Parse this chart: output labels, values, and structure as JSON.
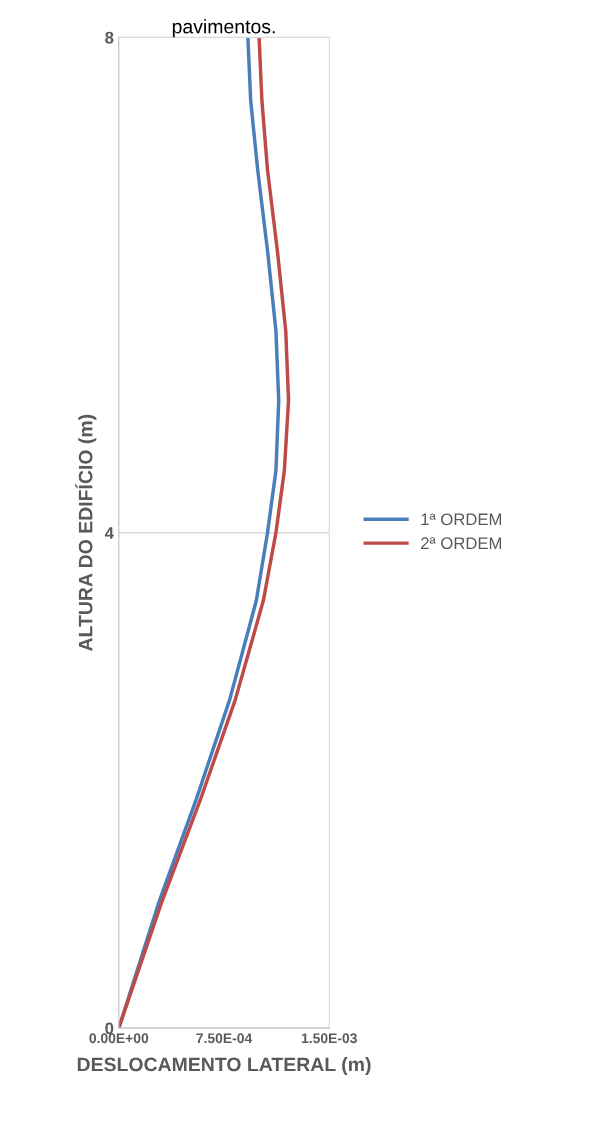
{
  "chart_data": {
    "type": "line",
    "title": "pavimentos.",
    "xlabel": "DESLOCAMENTO LATERAL (m)",
    "ylabel": "ALTURA DO EDIFÍCIO (m)",
    "xlim": [
      0,
      0.0015
    ],
    "xticks": [
      {
        "value": 0,
        "label": "0.00E+00"
      },
      {
        "value": 0.00075,
        "label": "7.50E-04"
      },
      {
        "value": 0.0015,
        "label": "1.50E-03"
      }
    ],
    "ylim": [
      0,
      8
    ],
    "yticks": [
      0,
      4,
      8
    ],
    "grid": "y",
    "legend": "right",
    "line_style": "solid",
    "marker": "none",
    "series": [
      {
        "name": "1ª ORDEM",
        "color": "#4a7ebb",
        "x": [
          0,
          0.00029,
          0.00055,
          0.00079,
          0.00098,
          0.00106,
          0.00112,
          0.00114,
          0.00112,
          0.00106,
          0.00099,
          0.00094,
          0.00092
        ],
        "values": [
          0,
          1.03,
          1.84,
          2.65,
          3.45,
          4,
          4.5,
          5.07,
          5.63,
          6.28,
          6.93,
          7.49,
          8
        ]
      },
      {
        "name": "2ª ORDEM",
        "color": "#be4b48",
        "x": [
          0,
          0.00031,
          0.00058,
          0.00083,
          0.00103,
          0.00112,
          0.00118,
          0.00121,
          0.00119,
          0.00113,
          0.00106,
          0.00102,
          0.001
        ],
        "values": [
          0,
          1.03,
          1.84,
          2.65,
          3.45,
          4,
          4.5,
          5.07,
          5.63,
          6.28,
          6.93,
          7.49,
          8
        ]
      }
    ]
  }
}
